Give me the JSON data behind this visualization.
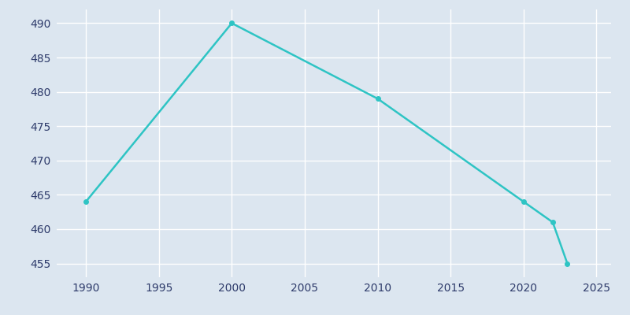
{
  "x": [
    1990,
    2000,
    2010,
    2020,
    2022,
    2023
  ],
  "y": [
    464,
    490,
    479,
    464,
    461,
    455
  ],
  "line_color": "#2EC4C4",
  "marker": "o",
  "marker_size": 4,
  "line_width": 1.8,
  "plot_bg_color": "#dce6f0",
  "fig_bg_color": "#dce6f0",
  "grid_color": "#ffffff",
  "tick_label_color": "#2d3A6A",
  "xlim": [
    1988,
    2026
  ],
  "ylim": [
    453,
    492
  ],
  "yticks": [
    455,
    460,
    465,
    470,
    475,
    480,
    485,
    490
  ],
  "xticks": [
    1990,
    1995,
    2000,
    2005,
    2010,
    2015,
    2020,
    2025
  ]
}
